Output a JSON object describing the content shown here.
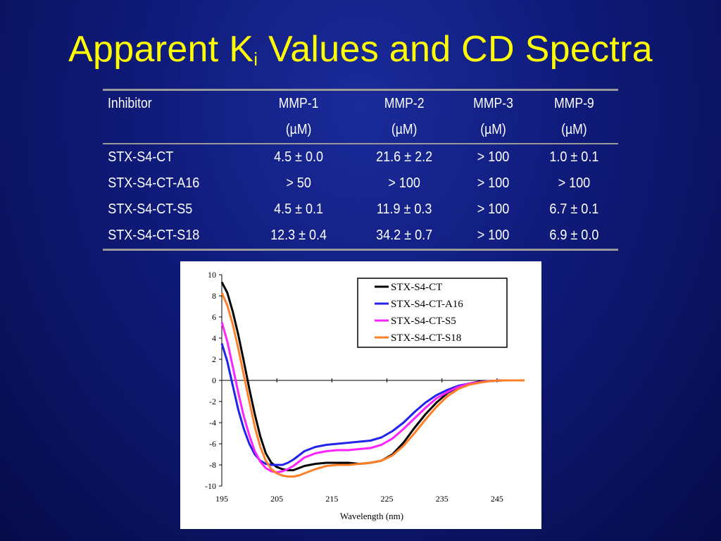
{
  "slide": {
    "title_main": "Apparent K",
    "title_sub": "i",
    "title_rest": " Values  and CD Spectra"
  },
  "table": {
    "headers": [
      {
        "line1": "Inhibitor",
        "line2": ""
      },
      {
        "line1": "MMP-1",
        "line2": "(µM)"
      },
      {
        "line1": "MMP-2",
        "line2": "(µM)"
      },
      {
        "line1": "MMP-3",
        "line2": "(µM)"
      },
      {
        "line1": "MMP-9",
        "line2": "(µM)"
      }
    ],
    "rows": [
      [
        "STX-S4-CT",
        "4.5 ± 0.0",
        "21.6 ± 2.2",
        "> 100",
        "1.0 ± 0.1"
      ],
      [
        "STX-S4-CT-A16",
        "> 50",
        "> 100",
        "> 100",
        "> 100"
      ],
      [
        "STX-S4-CT-S5",
        "4.5 ± 0.1",
        "11.9 ± 0.3",
        "> 100",
        "6.7 ± 0.1"
      ],
      [
        "STX-S4-CT-S18",
        "12.3 ± 0.4",
        "34.2 ± 0.7",
        "> 100",
        "6.9 ± 0.0"
      ]
    ]
  },
  "chart_data": {
    "type": "line",
    "title": "",
    "xlabel": "Wavelength (nm)",
    "ylabel": "",
    "xlim": [
      195,
      250
    ],
    "ylim": [
      -10,
      10
    ],
    "xticks": [
      195,
      205,
      215,
      225,
      235,
      245
    ],
    "yticks": [
      10,
      8,
      6,
      4,
      2,
      0,
      -2,
      -4,
      -6,
      -8,
      -10
    ],
    "legend_position": "top-right",
    "grid": false,
    "series": [
      {
        "name": "STX-S4-CT",
        "color": "#000000",
        "x": [
          195,
          196,
          197,
          198,
          199,
          200,
          201,
          202,
          203,
          204,
          205,
          206,
          207,
          208,
          209,
          210,
          212,
          214,
          216,
          218,
          220,
          222,
          224,
          226,
          228,
          230,
          232,
          234,
          236,
          238,
          240,
          242,
          244,
          246,
          248,
          250
        ],
        "y": [
          9.3,
          8.3,
          6.5,
          4.3,
          1.8,
          -0.8,
          -3.2,
          -5.3,
          -6.9,
          -7.8,
          -8.2,
          -8.4,
          -8.5,
          -8.5,
          -8.3,
          -8.1,
          -7.9,
          -7.8,
          -7.8,
          -7.8,
          -7.9,
          -7.8,
          -7.6,
          -7.0,
          -5.9,
          -4.5,
          -3.2,
          -2.1,
          -1.2,
          -0.6,
          -0.3,
          -0.1,
          -0.05,
          0.0,
          0.0,
          0.0
        ]
      },
      {
        "name": "STX-S4-CT-A16",
        "color": "#2222ee",
        "x": [
          195,
          196,
          197,
          198,
          199,
          200,
          201,
          202,
          203,
          204,
          205,
          206,
          207,
          208,
          209,
          210,
          212,
          214,
          216,
          218,
          220,
          222,
          224,
          226,
          228,
          230,
          232,
          234,
          236,
          238,
          240,
          242,
          244,
          246,
          248,
          250
        ],
        "y": [
          3.5,
          1.8,
          -0.5,
          -2.8,
          -4.6,
          -6.0,
          -7.0,
          -7.6,
          -7.9,
          -8.0,
          -8.0,
          -8.0,
          -7.8,
          -7.5,
          -7.1,
          -6.7,
          -6.3,
          -6.1,
          -6.0,
          -5.9,
          -5.8,
          -5.7,
          -5.4,
          -4.8,
          -4.0,
          -3.0,
          -2.1,
          -1.4,
          -0.9,
          -0.5,
          -0.3,
          -0.15,
          -0.05,
          0.0,
          0.0,
          0.0
        ]
      },
      {
        "name": "STX-S4-CT-S5",
        "color": "#ff22ff",
        "x": [
          195,
          196,
          197,
          198,
          199,
          200,
          201,
          202,
          203,
          204,
          205,
          206,
          207,
          208,
          209,
          210,
          212,
          214,
          216,
          218,
          220,
          222,
          224,
          226,
          228,
          230,
          232,
          234,
          236,
          238,
          240,
          242,
          244,
          246,
          248,
          250
        ],
        "y": [
          5.5,
          3.7,
          1.3,
          -1.2,
          -3.4,
          -5.2,
          -6.7,
          -7.7,
          -8.3,
          -8.6,
          -8.7,
          -8.6,
          -8.4,
          -8.1,
          -7.7,
          -7.3,
          -6.9,
          -6.7,
          -6.6,
          -6.6,
          -6.5,
          -6.4,
          -6.1,
          -5.5,
          -4.6,
          -3.6,
          -2.6,
          -1.7,
          -1.1,
          -0.6,
          -0.3,
          -0.15,
          -0.05,
          0.0,
          0.0,
          0.0
        ]
      },
      {
        "name": "STX-S4-CT-S18",
        "color": "#ff7f27",
        "x": [
          195,
          196,
          197,
          198,
          199,
          200,
          201,
          202,
          203,
          204,
          205,
          206,
          207,
          208,
          209,
          210,
          212,
          214,
          216,
          218,
          220,
          222,
          224,
          226,
          228,
          230,
          232,
          234,
          236,
          238,
          240,
          242,
          244,
          246,
          248,
          250
        ],
        "y": [
          8.3,
          7.1,
          5.3,
          3.0,
          0.5,
          -2.0,
          -4.4,
          -6.3,
          -7.6,
          -8.4,
          -8.8,
          -9.0,
          -9.1,
          -9.1,
          -9.0,
          -8.8,
          -8.4,
          -8.1,
          -8.0,
          -8.0,
          -7.9,
          -7.8,
          -7.6,
          -7.1,
          -6.2,
          -5.0,
          -3.7,
          -2.5,
          -1.5,
          -0.8,
          -0.4,
          -0.2,
          -0.05,
          0.0,
          0.0,
          0.0
        ]
      }
    ]
  }
}
